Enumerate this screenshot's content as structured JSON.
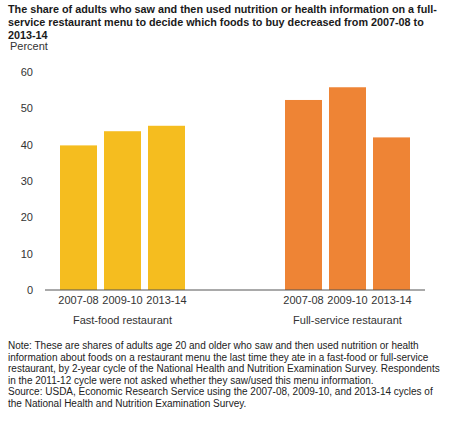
{
  "chart_data": {
    "type": "bar",
    "title": "The share of adults who saw and then used nutrition or health information on a full-service restaurant menu to decide which foods to buy decreased from 2007-08 to 2013-14",
    "y_label": "Percent",
    "categories": [
      "2007-08",
      "2009-10",
      "2013-14"
    ],
    "series": [
      {
        "name": "Fast-food restaurant",
        "color": "#F5BD1F",
        "values": [
          39.8,
          43.7,
          45.2
        ]
      },
      {
        "name": "Full-service restaurant",
        "color": "#EE8435",
        "values": [
          52.3,
          55.8,
          42.0
        ]
      }
    ],
    "ylim": [
      0,
      60
    ],
    "yticks": [
      0,
      10,
      20,
      30,
      40,
      50,
      60
    ],
    "grid": false,
    "note": "Note: These are shares of adults age 20 and older who saw and then used nutrition or health information about foods on a restaurant menu the last time they ate in a fast-food or full-service restaurant, by 2-year cycle of the National Health and Nutrition Examination Survey. Respondents in the 2011-12 cycle were not asked whether they saw/used this menu information.",
    "source": "Source: USDA, Economic Research Service using the 2007-08, 2009-10, and 2013-14 cycles of the National Health and Nutrition Examination Survey."
  }
}
